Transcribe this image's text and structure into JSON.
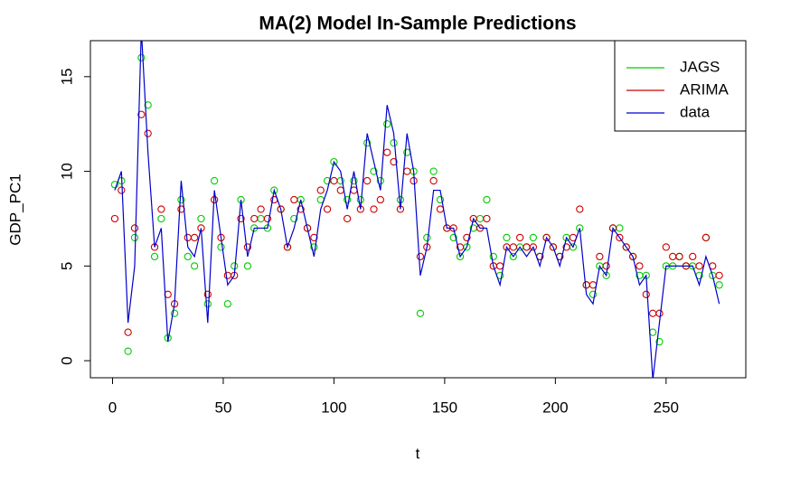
{
  "chart_data": {
    "type": "line",
    "title": "MA(2) Model In-Sample Predictions",
    "x_label": "t",
    "y_label": "GDP_PC1",
    "x": [
      1,
      4,
      7,
      10,
      13,
      16,
      19,
      22,
      25,
      28,
      31,
      34,
      37,
      40,
      43,
      46,
      49,
      52,
      55,
      58,
      61,
      64,
      67,
      70,
      73,
      76,
      79,
      82,
      85,
      88,
      91,
      94,
      97,
      100,
      103,
      106,
      109,
      112,
      115,
      118,
      121,
      124,
      127,
      130,
      133,
      136,
      139,
      142,
      145,
      148,
      151,
      154,
      157,
      160,
      163,
      166,
      169,
      172,
      175,
      178,
      181,
      184,
      187,
      190,
      193,
      196,
      199,
      202,
      205,
      208,
      211,
      214,
      217,
      220,
      223,
      226,
      229,
      232,
      235,
      238,
      241,
      244,
      247,
      250,
      253,
      256,
      259,
      262,
      265,
      268,
      271,
      274
    ],
    "series": [
      {
        "name": "JAGS",
        "color": "#00cd00",
        "marker": "circle",
        "values": [
          9.3,
          9.5,
          0.5,
          6.5,
          16,
          13.5,
          5.5,
          7.5,
          1.2,
          2.5,
          8.5,
          5.5,
          5,
          7.5,
          3,
          9.5,
          6,
          3,
          5,
          8.5,
          5,
          7,
          7.5,
          7,
          9,
          8,
          6,
          7.5,
          8.5,
          7,
          6,
          8.5,
          9.5,
          10.5,
          9.5,
          8.5,
          9.5,
          8.5,
          11.5,
          10,
          9.5,
          12.5,
          11.5,
          8.5,
          11,
          10,
          2.5,
          6.5,
          10,
          8.5,
          7,
          6.5,
          5.5,
          6,
          7,
          7.5,
          8.5,
          5.5,
          4.5,
          6.5,
          5.5,
          6,
          6,
          6.5,
          5.5,
          6.5,
          6,
          5.5,
          6.5,
          6,
          7,
          4,
          3.5,
          5,
          4.5,
          7,
          7,
          6,
          5.5,
          4.5,
          4.5,
          1.5,
          1,
          5,
          5,
          5.5,
          5,
          5,
          4.5,
          6.5,
          4.5,
          4
        ]
      },
      {
        "name": "ARIMA",
        "color": "#cd0000",
        "marker": "circle",
        "values": [
          7.5,
          9,
          1.5,
          7,
          13,
          12,
          6,
          8,
          3.5,
          3,
          8,
          6.5,
          6.5,
          7,
          3.5,
          8.5,
          6.5,
          4.5,
          4.5,
          7.5,
          6,
          7.5,
          8,
          7.5,
          8.5,
          8,
          6,
          8.5,
          8,
          7,
          6.5,
          9,
          8,
          9.5,
          9,
          7.5,
          9,
          8,
          9.5,
          8,
          8.5,
          11,
          10.5,
          8,
          10,
          9.5,
          5.5,
          6,
          9.5,
          8,
          7,
          7,
          6,
          6.5,
          7.5,
          7,
          7.5,
          5,
          5,
          6,
          6,
          6.5,
          6,
          6,
          5.5,
          6.5,
          6,
          5.5,
          6,
          6.5,
          8,
          4,
          4,
          5.5,
          5,
          7,
          6.5,
          6,
          5.5,
          5,
          3.5,
          2.5,
          2.5,
          6,
          5.5,
          5.5,
          5,
          5.5,
          5,
          6.5,
          5,
          4.5
        ]
      },
      {
        "name": "data",
        "color": "#0000cd",
        "marker": "line",
        "values": [
          9,
          10,
          2,
          5,
          17.5,
          11,
          6,
          7,
          1,
          3,
          9.5,
          6,
          5.5,
          7,
          2,
          9,
          6.5,
          4,
          4.5,
          8.5,
          5.5,
          7,
          7,
          7,
          9,
          8,
          6,
          7,
          8.5,
          7,
          5.5,
          8,
          9,
          10.5,
          10,
          8,
          10,
          8,
          12,
          10.5,
          9,
          13.5,
          12,
          8,
          12,
          10,
          4.5,
          6,
          9,
          9,
          7,
          7,
          5.5,
          6,
          7.5,
          7,
          7,
          5,
          4,
          6,
          5.5,
          6,
          5.5,
          6,
          5,
          6.5,
          6,
          5,
          6.5,
          6,
          7,
          3.5,
          3,
          5,
          4.5,
          7,
          6.5,
          6,
          5.5,
          4,
          4.5,
          -1,
          2,
          5,
          5,
          5,
          5,
          5,
          4,
          5.5,
          4.5,
          3
        ]
      }
    ],
    "xlim": [
      -10,
      286
    ],
    "ylim": [
      -0.9,
      16.9
    ],
    "xticks": [
      0,
      50,
      100,
      150,
      200,
      250
    ],
    "yticks": [
      0,
      5,
      10,
      15
    ],
    "legend": "top-right",
    "grid": false
  }
}
